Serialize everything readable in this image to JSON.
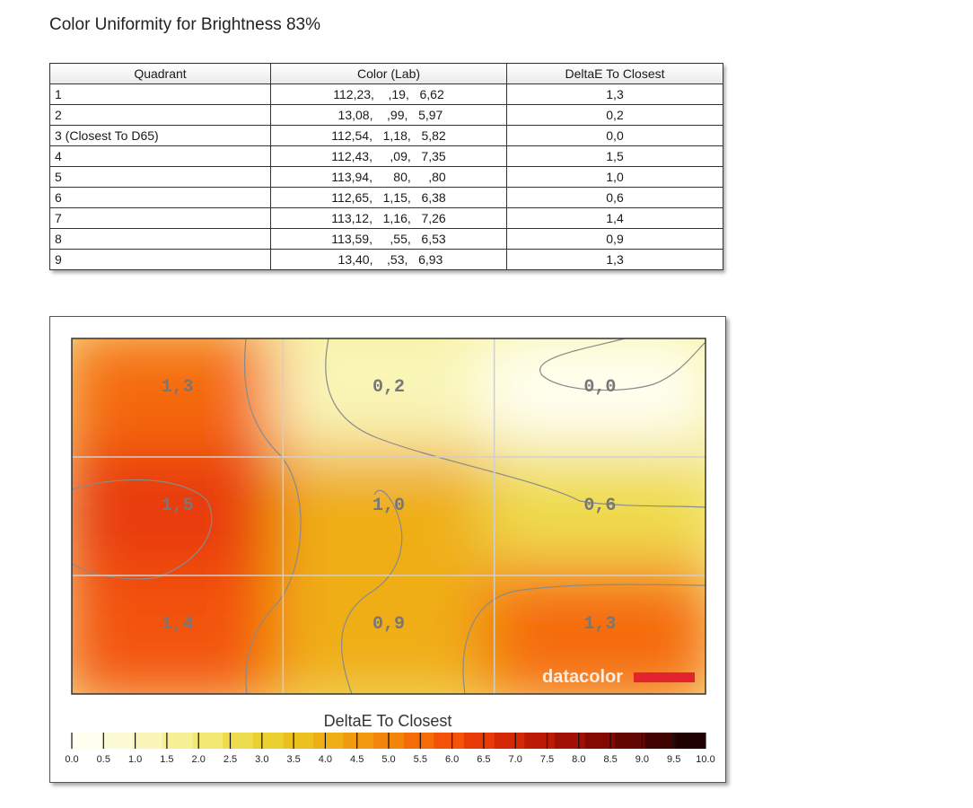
{
  "page": {
    "title": "Color Uniformity for Brightness 83%"
  },
  "table": {
    "headers": [
      "Quadrant",
      "Color (Lab)",
      "DeltaE To Closest"
    ],
    "rows": [
      [
        "1",
        "112,23,    ,19,   6,62",
        "1,3"
      ],
      [
        "2",
        " 13,08,    ,99,   5,97",
        "0,2"
      ],
      [
        "3 (Closest To D65)",
        "112,54,   1,18,   5,82",
        "0,0"
      ],
      [
        "4",
        "112,43,     ,09,   7,35",
        "1,5"
      ],
      [
        "5",
        "113,94,      80,     ,80",
        "1,0"
      ],
      [
        "6",
        "112,65,   1,15,   6,38",
        "0,6"
      ],
      [
        "7",
        "113,12,   1,16,   7,26",
        "1,4"
      ],
      [
        "8",
        "113,59,     ,55,   6,53",
        "0,9"
      ],
      [
        "9",
        " 13,40,    ,53,   6,93",
        "1,3"
      ]
    ]
  },
  "chart_data": {
    "type": "heatmap",
    "grid": {
      "rows": 3,
      "cols": 3
    },
    "values": [
      [
        1.3,
        0.2,
        0.0
      ],
      [
        1.5,
        1.0,
        0.6
      ],
      [
        1.4,
        0.9,
        1.3
      ]
    ],
    "labels": [
      [
        "1,3",
        "0,2",
        "0,0"
      ],
      [
        "1,5",
        "1,0",
        "0,6"
      ],
      [
        "1,4",
        "0,9",
        "1,3"
      ]
    ],
    "legend_title": "DeltaE To Closest",
    "scale_ticks": [
      "0.0",
      "0.5",
      "1.0",
      "1.5",
      "2.0",
      "2.5",
      "3.0",
      "3.5",
      "4.0",
      "4.5",
      "5.0",
      "5.5",
      "6.0",
      "6.5",
      "7.0",
      "7.5",
      "8.0",
      "8.5",
      "9.0",
      "9.5",
      "10.0"
    ],
    "scale_range": [
      0,
      10
    ],
    "scale_colors": [
      "#fffff0",
      "#fcfbd6",
      "#f9f6b8",
      "#f6ef96",
      "#f3e873",
      "#efdc4e",
      "#ecd02f",
      "#edc11d",
      "#efae15",
      "#f19a10",
      "#f3840c",
      "#f56b0a",
      "#f35208",
      "#e83a07",
      "#d42806",
      "#bb1a05",
      "#a01004",
      "#820a03",
      "#620602",
      "#400302",
      "#200101"
    ],
    "grid_lines": true,
    "watermark": "datacolor",
    "accent_color": "#e3232f"
  }
}
